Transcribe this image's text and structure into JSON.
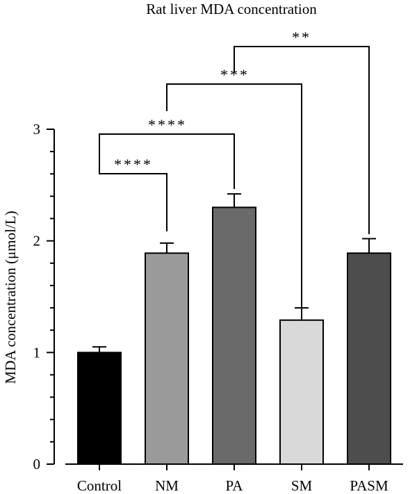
{
  "chart_data": {
    "type": "bar",
    "title": "Rat liver MDA concentration",
    "xlabel": "",
    "ylabel": "MDA concentration (μmol/L)",
    "ylim": [
      0,
      3
    ],
    "yticks": [
      "0",
      "1",
      "2",
      "3"
    ],
    "categories": [
      "Control",
      "NM",
      "PA",
      "SM",
      "PASM"
    ],
    "values": [
      1.0,
      1.89,
      2.3,
      1.29,
      1.89
    ],
    "errors": [
      0.05,
      0.09,
      0.12,
      0.11,
      0.13
    ],
    "bar_colors": [
      "#000000",
      "#9a9a9a",
      "#6a6a6a",
      "#d9d9d9",
      "#4d4d4d"
    ],
    "grid": false,
    "significance": [
      {
        "from": 0,
        "to": 1,
        "label": "****"
      },
      {
        "from": 0,
        "to": 2,
        "label": "****"
      },
      {
        "from": 1,
        "to": 3,
        "label": "***"
      },
      {
        "from": 2,
        "to": 4,
        "label": "**"
      }
    ]
  }
}
